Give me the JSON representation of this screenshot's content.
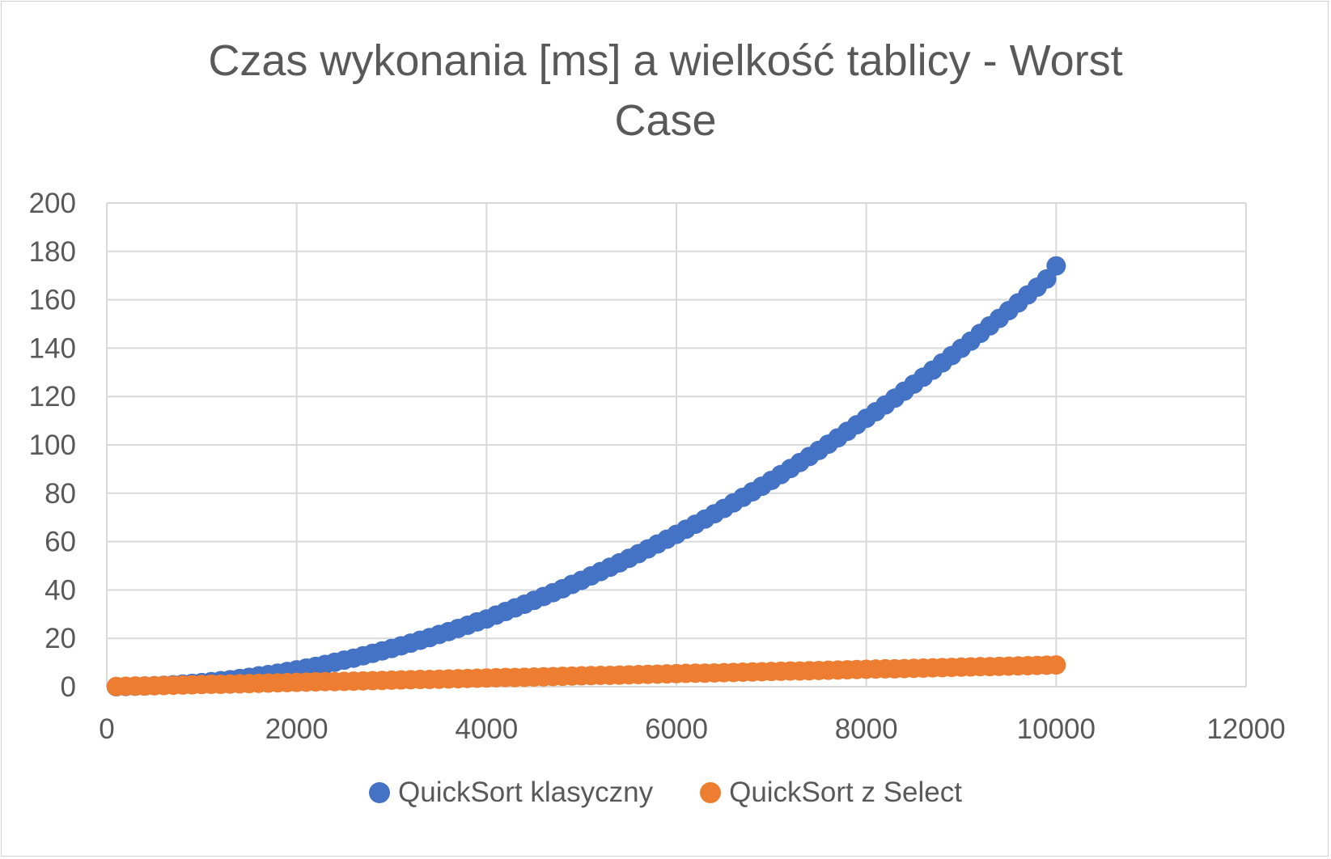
{
  "chart_data": {
    "type": "scatter",
    "title": "Czas wykonania [ms] a wielkość tablicy - Worst Case",
    "title_lines": [
      "Czas wykonania [ms] a wielkość tablicy - Worst",
      "Case"
    ],
    "xlabel": "",
    "ylabel": "",
    "xlim": [
      0,
      12000
    ],
    "ylim": [
      0,
      200
    ],
    "x_ticks": [
      0,
      2000,
      4000,
      6000,
      8000,
      10000,
      12000
    ],
    "y_ticks": [
      0,
      20,
      40,
      60,
      80,
      100,
      120,
      140,
      160,
      180,
      200
    ],
    "x_tick_labels": [
      "0",
      "2000",
      "4000",
      "6000",
      "8000",
      "10000",
      "12000"
    ],
    "y_tick_labels": [
      "0",
      "20",
      "40",
      "60",
      "80",
      "100",
      "120",
      "140",
      "160",
      "180",
      "200"
    ],
    "grid": true,
    "legend_position": "bottom",
    "x": [
      100,
      200,
      300,
      400,
      500,
      600,
      700,
      800,
      900,
      1000,
      1100,
      1200,
      1300,
      1400,
      1500,
      1600,
      1700,
      1800,
      1900,
      2000,
      2100,
      2200,
      2300,
      2400,
      2500,
      2600,
      2700,
      2800,
      2900,
      3000,
      3100,
      3200,
      3300,
      3400,
      3500,
      3600,
      3700,
      3800,
      3900,
      4000,
      4100,
      4200,
      4300,
      4400,
      4500,
      4600,
      4700,
      4800,
      4900,
      5000,
      5100,
      5200,
      5300,
      5400,
      5500,
      5600,
      5700,
      5800,
      5900,
      6000,
      6100,
      6200,
      6300,
      6400,
      6500,
      6600,
      6700,
      6800,
      6900,
      7000,
      7100,
      7200,
      7300,
      7400,
      7500,
      7600,
      7700,
      7800,
      7900,
      8000,
      8100,
      8200,
      8300,
      8400,
      8500,
      8600,
      8700,
      8800,
      8900,
      9000,
      9100,
      9200,
      9300,
      9400,
      9500,
      9600,
      9700,
      9800,
      9900,
      10000
    ],
    "series": [
      {
        "name": "QuickSort klasyczny",
        "color": "#4472c4",
        "values": [
          0.0,
          0.1,
          0.2,
          0.3,
          0.4,
          0.6,
          0.8,
          1.1,
          1.4,
          1.7,
          2.1,
          2.5,
          2.9,
          3.4,
          3.9,
          4.5,
          5.0,
          5.6,
          6.3,
          7.0,
          7.7,
          8.4,
          9.2,
          10.1,
          11.0,
          11.8,
          12.8,
          13.8,
          14.8,
          15.8,
          16.9,
          18.0,
          19.2,
          20.3,
          21.6,
          22.8,
          24.1,
          25.4,
          26.8,
          28.0,
          29.6,
          31.1,
          32.6,
          34.1,
          35.7,
          37.3,
          38.9,
          40.5,
          42.3,
          44.0,
          45.8,
          47.6,
          49.4,
          51.2,
          53.1,
          55.0,
          57.0,
          59.0,
          61.0,
          63.0,
          65.1,
          67.2,
          69.3,
          71.5,
          73.7,
          76.0,
          78.3,
          80.6,
          82.9,
          85.3,
          87.7,
          90.2,
          92.7,
          95.2,
          97.7,
          100.3,
          102.9,
          105.6,
          108.3,
          111.0,
          113.7,
          116.5,
          119.3,
          122.2,
          125.1,
          128.0,
          130.9,
          133.9,
          136.9,
          139.9,
          142.9,
          146.1,
          149.2,
          152.3,
          155.5,
          158.7,
          162.0,
          165.2,
          168.6,
          174.0
        ]
      },
      {
        "name": "QuickSort z Select",
        "color": "#ed7d31",
        "values": [
          0.1,
          0.2,
          0.3,
          0.3,
          0.4,
          0.5,
          0.6,
          0.7,
          0.8,
          0.9,
          1.0,
          1.0,
          1.1,
          1.2,
          1.3,
          1.4,
          1.5,
          1.6,
          1.7,
          1.8,
          1.9,
          2.0,
          2.1,
          2.1,
          2.2,
          2.3,
          2.4,
          2.5,
          2.6,
          2.7,
          2.8,
          2.9,
          3.0,
          3.0,
          3.1,
          3.2,
          3.3,
          3.4,
          3.5,
          3.6,
          3.7,
          3.8,
          3.8,
          3.9,
          4.0,
          4.1,
          4.2,
          4.3,
          4.4,
          4.5,
          4.6,
          4.7,
          4.7,
          4.8,
          4.9,
          5.0,
          5.1,
          5.2,
          5.3,
          5.4,
          5.5,
          5.6,
          5.6,
          5.7,
          5.8,
          5.9,
          6.0,
          6.1,
          6.2,
          6.3,
          6.4,
          6.5,
          6.5,
          6.6,
          6.7,
          6.8,
          6.9,
          7.0,
          7.1,
          7.2,
          7.3,
          7.4,
          7.4,
          7.5,
          7.6,
          7.7,
          7.8,
          7.9,
          8.0,
          8.1,
          8.2,
          8.3,
          8.3,
          8.4,
          8.5,
          8.6,
          8.7,
          8.8,
          8.9,
          9.0
        ]
      }
    ]
  }
}
